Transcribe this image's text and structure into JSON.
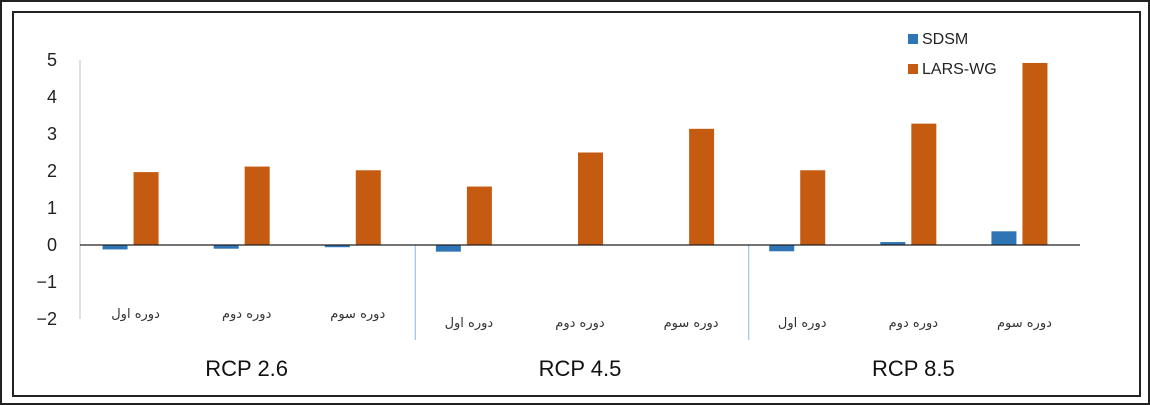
{
  "chart_data": {
    "type": "bar",
    "title": "",
    "xlabel": "",
    "ylabel": "",
    "ylim": [
      -2,
      5
    ],
    "yticks": [
      "5",
      "4",
      "3",
      "2",
      "1",
      "0",
      "−1",
      "−2"
    ],
    "ytick_values": [
      5,
      4,
      3,
      2,
      1,
      0,
      -1,
      -2
    ],
    "grid": false,
    "legend_position": "top-right",
    "groups": [
      "RCP 2.6",
      "RCP 4.5",
      "RCP 8.5"
    ],
    "categories": [
      "دوره اول",
      "دوره دوم",
      "دوره سوم",
      "دوره اول",
      "دوره دوم",
      "دوره سوم",
      "دوره اول",
      "دوره دوم",
      "دوره سوم"
    ],
    "series": [
      {
        "name": "SDSM",
        "color": "#2e75b6",
        "values": [
          -0.12,
          -0.1,
          -0.06,
          -0.18,
          0,
          0,
          -0.17,
          0.08,
          0.37
        ]
      },
      {
        "name": "LARS-WG",
        "color": "#c55a11",
        "values": [
          1.97,
          2.12,
          2.02,
          1.58,
          2.5,
          3.14,
          2.02,
          3.28,
          4.92
        ]
      }
    ]
  }
}
